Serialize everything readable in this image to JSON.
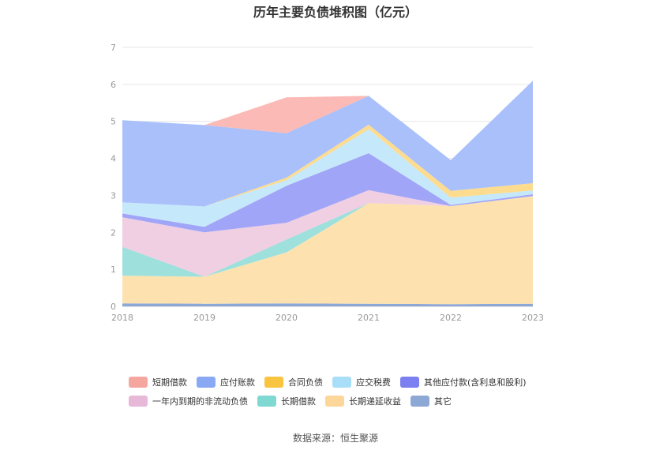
{
  "chart_data": {
    "type": "area",
    "title": "历年主要负债堆积图（亿元）",
    "categories": [
      "2018",
      "2019",
      "2020",
      "2021",
      "2022",
      "2023"
    ],
    "ylim": [
      0,
      7
    ],
    "yticks": [
      "0",
      "1",
      "2",
      "3",
      "4",
      "5",
      "6",
      "7"
    ],
    "stacked": true,
    "grid": true,
    "legend_position": "bottom",
    "series": [
      {
        "name": "其它",
        "color": "#8ea8d6",
        "values": [
          0.08,
          0.07,
          0.08,
          0.07,
          0.06,
          0.07
        ]
      },
      {
        "name": "长期递延收益",
        "color": "#fde2b0",
        "values": [
          0.75,
          0.73,
          1.38,
          2.72,
          2.65,
          2.91
        ]
      },
      {
        "name": "长期借款",
        "color": "#9ee0dc",
        "values": [
          0.78,
          0.0,
          0.35,
          0.0,
          0.0,
          0.0
        ]
      },
      {
        "name": "一年内到期的非流动负债",
        "color": "#f0cfe3",
        "values": [
          0.8,
          1.2,
          0.45,
          0.35,
          0.0,
          0.0
        ]
      },
      {
        "name": "其他应付款(含利息和股利)",
        "color": "#a1a5f7",
        "values": [
          0.1,
          0.15,
          1.0,
          1.0,
          0.03,
          0.05
        ]
      },
      {
        "name": "应交税费",
        "color": "#c6e8fb",
        "values": [
          0.3,
          0.55,
          0.15,
          0.65,
          0.2,
          0.1
        ]
      },
      {
        "name": "合同负债",
        "color": "#fddc8f",
        "values": [
          0.0,
          0.0,
          0.07,
          0.12,
          0.18,
          0.2
        ]
      },
      {
        "name": "应付账款",
        "color": "#a9c0fb",
        "values": [
          2.22,
          2.2,
          1.2,
          0.78,
          0.83,
          2.77
        ]
      },
      {
        "name": "短期借款",
        "color": "#fbbab5",
        "values": [
          0.0,
          0.0,
          0.97,
          0.0,
          0.0,
          0.0
        ]
      }
    ]
  },
  "legend": {
    "row1": [
      {
        "label": "短期借款",
        "color": "#f5a79f"
      },
      {
        "label": "应付账款",
        "color": "#8aa9f5"
      },
      {
        "label": "合同负债",
        "color": "#f9c440"
      },
      {
        "label": "应交税费",
        "color": "#a8def8"
      },
      {
        "label": "其他应付款(含利息和股利)",
        "color": "#7b7ff0"
      }
    ],
    "row2": [
      {
        "label": "一年内到期的非流动负债",
        "color": "#e8b8d8"
      },
      {
        "label": "长期借款",
        "color": "#7fd8d2"
      },
      {
        "label": "长期递延收益",
        "color": "#fdd699"
      },
      {
        "label": "其它",
        "color": "#8ea8d6"
      }
    ]
  },
  "source": "数据来源：恒生聚源"
}
